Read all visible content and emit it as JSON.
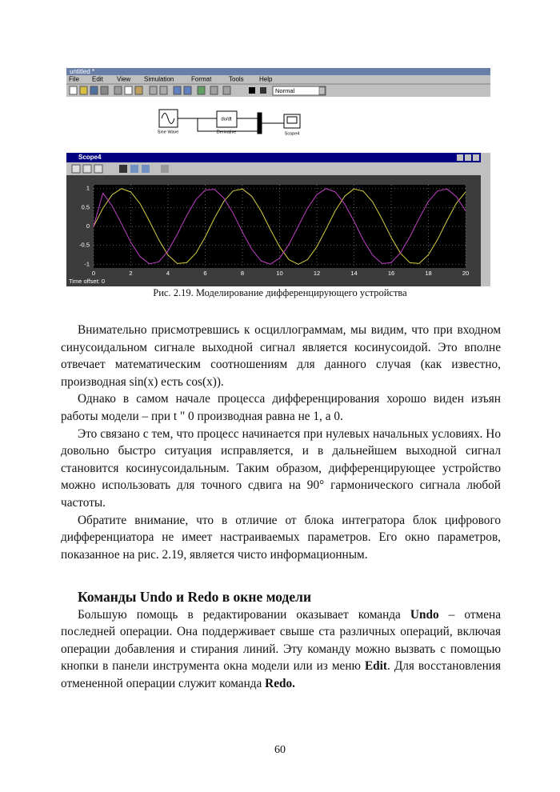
{
  "screenshot": {
    "window_title": "untitled *",
    "menu": [
      "File",
      "Edit",
      "View",
      "Simulation",
      "Format",
      "Tools",
      "Help"
    ],
    "zoom": "Normal",
    "blocks": {
      "sine": "Sine Wave",
      "derivative_symbol": "du/dt",
      "derivative": "Derivative",
      "scope": "Scope4"
    },
    "scope_title": "Scope4",
    "time_offset": "Time offset: 0"
  },
  "chart_data": {
    "type": "line",
    "x": [
      0,
      0.5,
      1,
      1.5,
      2,
      2.5,
      3,
      3.5,
      4,
      4.5,
      5,
      5.5,
      6,
      6.5,
      7,
      7.5,
      8,
      8.5,
      9,
      9.5,
      10,
      10.5,
      11,
      11.5,
      12,
      12.5,
      13,
      13.5,
      14,
      14.5,
      15,
      15.5,
      16,
      16.5,
      17,
      17.5,
      18,
      18.5,
      19,
      19.5,
      20
    ],
    "series": [
      {
        "color": "#d8d040",
        "values": [
          0,
          0.48,
          0.84,
          1,
          0.91,
          0.6,
          0.14,
          -0.35,
          -0.76,
          -0.98,
          -0.96,
          -0.71,
          -0.28,
          0.22,
          0.66,
          0.94,
          0.99,
          0.8,
          0.41,
          -0.08,
          -0.54,
          -0.88,
          -1,
          -0.88,
          -0.54,
          -0.07,
          0.42,
          0.8,
          0.99,
          0.93,
          0.65,
          0.2,
          -0.29,
          -0.71,
          -0.96,
          -0.98,
          -0.75,
          -0.34,
          0.15,
          0.61,
          0.91
        ]
      },
      {
        "color": "#c040c8",
        "values": [
          0,
          0.88,
          0.54,
          0.07,
          -0.42,
          -0.8,
          -0.99,
          -0.94,
          -0.65,
          -0.21,
          0.28,
          0.71,
          0.96,
          0.98,
          0.75,
          0.35,
          -0.15,
          -0.6,
          -0.91,
          -1,
          -0.84,
          -0.48,
          0,
          0.48,
          0.84,
          1,
          0.91,
          0.59,
          0.14,
          -0.36,
          -0.76,
          -0.98,
          -0.96,
          -0.7,
          -0.28,
          0.21,
          0.66,
          0.94,
          0.99,
          0.79,
          0.41
        ]
      }
    ],
    "xlim": [
      0,
      20
    ],
    "ylim": [
      -1.1,
      1.1
    ],
    "xticks": [
      0,
      2,
      4,
      6,
      8,
      10,
      12,
      14,
      16,
      18,
      20
    ],
    "yticks": [
      -1,
      -0.5,
      0,
      0.5,
      1
    ],
    "grid": true
  },
  "caption": "Рис. 2.19. Моделирование дифференцирующего устройства",
  "paragraphs": [
    "Внимательно присмотревшись к осциллограммам, мы видим, что при входном синусоидальном сигнале выходной сигнал является косинусоидой. Это вполне отвечает математическим соотношениям для данного случая (как известно, производная sin(x) есть cos(x)).",
    "Однако в самом начале процесса дифференцирования хорошо виден изъян работы модели –  при t \" 0 производная равна не 1, а 0.",
    "Это связано с тем, что процесс начинается при нулевых начальных условиях. Но довольно быстро ситуация исправляется, и в дальнейшем выходной сигнал становится косинусоидальным. Таким образом, дифференцирующее устройство можно использовать для точного сдвига на 90° гармонического сигнала любой частоты.",
    "Обратите внимание, что в отличие от блока интегратора блок цифрового дифференциатора не имеет настраиваемых параметров. Его окно параметров, показанное на рис. 2.19, является чисто информационным."
  ],
  "section": {
    "heading": "Команды Undo и Redo в окне модели",
    "runs": [
      {
        "text": "Большую помощь в редактировании оказывает команда "
      },
      {
        "text": "Undo",
        "bold": true
      },
      {
        "text": " – отмена последней операции. Она поддерживает свыше ста различных операций, включая операции добавления и стирания линий. Эту команду можно вызвать с помощью кнопки в панели инструмента окна модели или из меню "
      },
      {
        "text": "Edit",
        "bold": true
      },
      {
        "text": ". Для восстановления отмененной операции служит команда "
      },
      {
        "text": "Redo.",
        "bold": true
      }
    ]
  },
  "page_number": "60"
}
